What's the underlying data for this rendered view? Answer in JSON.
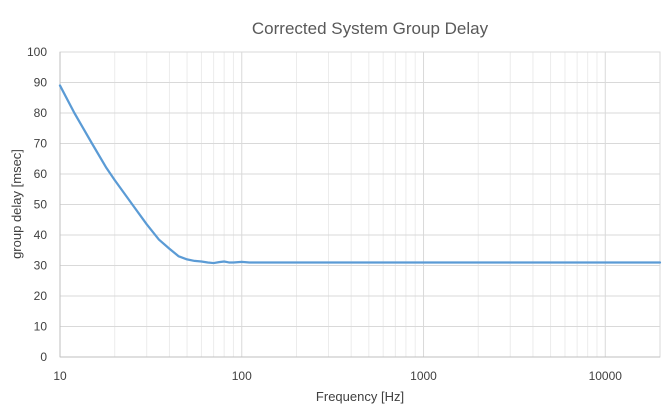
{
  "chart_data": {
    "type": "line",
    "title": "Corrected System Group Delay",
    "xlabel": "Frequency [Hz]",
    "ylabel": "group delay [msec]",
    "x_scale": "log",
    "xlim": [
      10,
      20000
    ],
    "ylim": [
      0,
      100
    ],
    "x_ticks": [
      10,
      100,
      1000,
      10000
    ],
    "x_tick_labels": [
      "10",
      "100",
      "1000",
      "10000"
    ],
    "y_ticks": [
      0,
      10,
      20,
      30,
      40,
      50,
      60,
      70,
      80,
      90,
      100
    ],
    "y_tick_labels": [
      "0",
      "10",
      "20",
      "30",
      "40",
      "50",
      "60",
      "70",
      "80",
      "90",
      "100"
    ],
    "grid": {
      "major": true,
      "minor_x": true
    },
    "legend": "none",
    "series": [
      {
        "color": "#5b9bd5",
        "x": [
          10,
          12,
          15,
          18,
          20,
          25,
          30,
          35,
          40,
          45,
          50,
          55,
          60,
          65,
          70,
          75,
          80,
          85,
          90,
          100,
          110,
          120,
          150,
          200,
          300,
          500,
          1000,
          2000,
          5000,
          10000,
          20000
        ],
        "y": [
          89,
          80,
          70,
          62,
          58,
          50,
          43.5,
          38.5,
          35.5,
          33,
          32,
          31.5,
          31.3,
          31.0,
          30.8,
          31.1,
          31.3,
          31.0,
          31.0,
          31.2,
          31.0,
          31.0,
          31.0,
          31.0,
          31.0,
          31.0,
          31.0,
          31.0,
          31.0,
          31.0,
          31.0
        ]
      }
    ]
  },
  "colors": {
    "line": "#5b9bd5",
    "grid": "#d9d9d9",
    "minor_grid": "#ececec",
    "axis": "#bfbfbf",
    "text": "#404040",
    "title": "#595959"
  }
}
